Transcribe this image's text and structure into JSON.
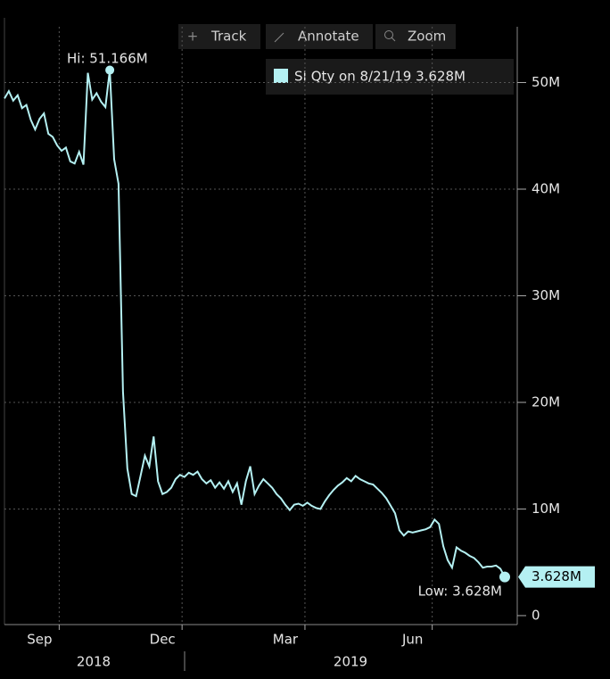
{
  "toolbar": [
    "Track",
    "Annotate",
    "Zoom"
  ],
  "chart_data": {
    "type": "line",
    "categories": [
      null,
      null,
      null,
      null,
      null,
      null,
      null,
      null,
      "Sep",
      null,
      null,
      null,
      null,
      null,
      null,
      null,
      null,
      null,
      null,
      null,
      null,
      null,
      null,
      null,
      null,
      null,
      null,
      null,
      null,
      null,
      null,
      null,
      null,
      null,
      null,
      null,
      "Dec",
      null,
      null,
      null,
      null,
      null,
      null,
      null,
      null,
      null,
      null,
      null,
      null,
      null,
      null,
      null,
      null,
      null,
      null,
      null,
      null,
      null,
      null,
      null,
      null,
      null,
      null,
      null,
      "Mar",
      null,
      null,
      null,
      null,
      null,
      null,
      null,
      null,
      null,
      null,
      null,
      null,
      null,
      null,
      null,
      null,
      null,
      null,
      null,
      null,
      null,
      null,
      null,
      null,
      null,
      null,
      null,
      null,
      "Jun",
      null,
      null,
      null,
      null,
      null,
      null,
      null,
      null,
      null,
      null,
      null,
      null,
      null,
      null,
      null,
      null,
      null,
      null,
      null,
      null,
      null
    ],
    "years": [
      "2018",
      "2019"
    ],
    "series": [
      {
        "name": "SI Qty on 8/21/19 3.628M",
        "color": "#b4f0f2",
        "values": [
          48.5,
          49.2,
          48.3,
          48.8,
          47.6,
          47.9,
          46.5,
          45.6,
          46.6,
          47.1,
          45.2,
          44.9,
          44.1,
          43.6,
          43.9,
          42.6,
          42.4,
          43.5,
          42.3,
          50.9,
          48.4,
          49.0,
          48.2,
          47.7,
          51.166,
          42.8,
          40.5,
          21.0,
          13.8,
          11.4,
          11.2,
          13.1,
          15.0,
          14.0,
          16.8,
          12.6,
          11.4,
          11.6,
          12.0,
          12.8,
          13.2,
          13.0,
          13.4,
          13.2,
          13.5,
          12.8,
          12.4,
          12.7,
          12.0,
          12.5,
          11.9,
          12.6,
          11.6,
          12.4,
          10.4,
          12.6,
          14.0,
          11.4,
          12.2,
          12.8,
          12.4,
          12.0,
          11.4,
          11.0,
          10.4,
          9.9,
          10.4,
          10.5,
          10.3,
          10.6,
          10.3,
          10.1,
          10.0,
          10.7,
          11.3,
          11.8,
          12.2,
          12.5,
          12.9,
          12.6,
          13.1,
          12.8,
          12.6,
          12.4,
          12.3,
          11.9,
          11.5,
          11.0,
          10.3,
          9.6,
          8.0,
          7.5,
          7.9,
          7.8,
          7.9,
          8.0,
          8.1,
          8.3,
          9.0,
          8.6,
          6.5,
          5.2,
          4.5,
          6.4,
          6.1,
          5.9,
          5.6,
          5.4,
          5.0,
          4.5,
          4.6,
          4.6,
          4.7,
          4.4,
          3.628
        ],
        "last_label": "3.628M"
      }
    ],
    "annotations": {
      "high": "Hi: 51.166M",
      "low": "Low: 3.628M"
    },
    "ylim": [
      -0.84,
      55.23
    ],
    "yticks": [
      0,
      {
        "value": 10,
        "label": "10M"
      },
      {
        "value": 20,
        "label": "20M"
      },
      {
        "value": 30,
        "label": "30M"
      },
      {
        "value": 40,
        "label": "40M"
      },
      {
        "value": 50,
        "label": "50M"
      }
    ],
    "grid": true
  }
}
